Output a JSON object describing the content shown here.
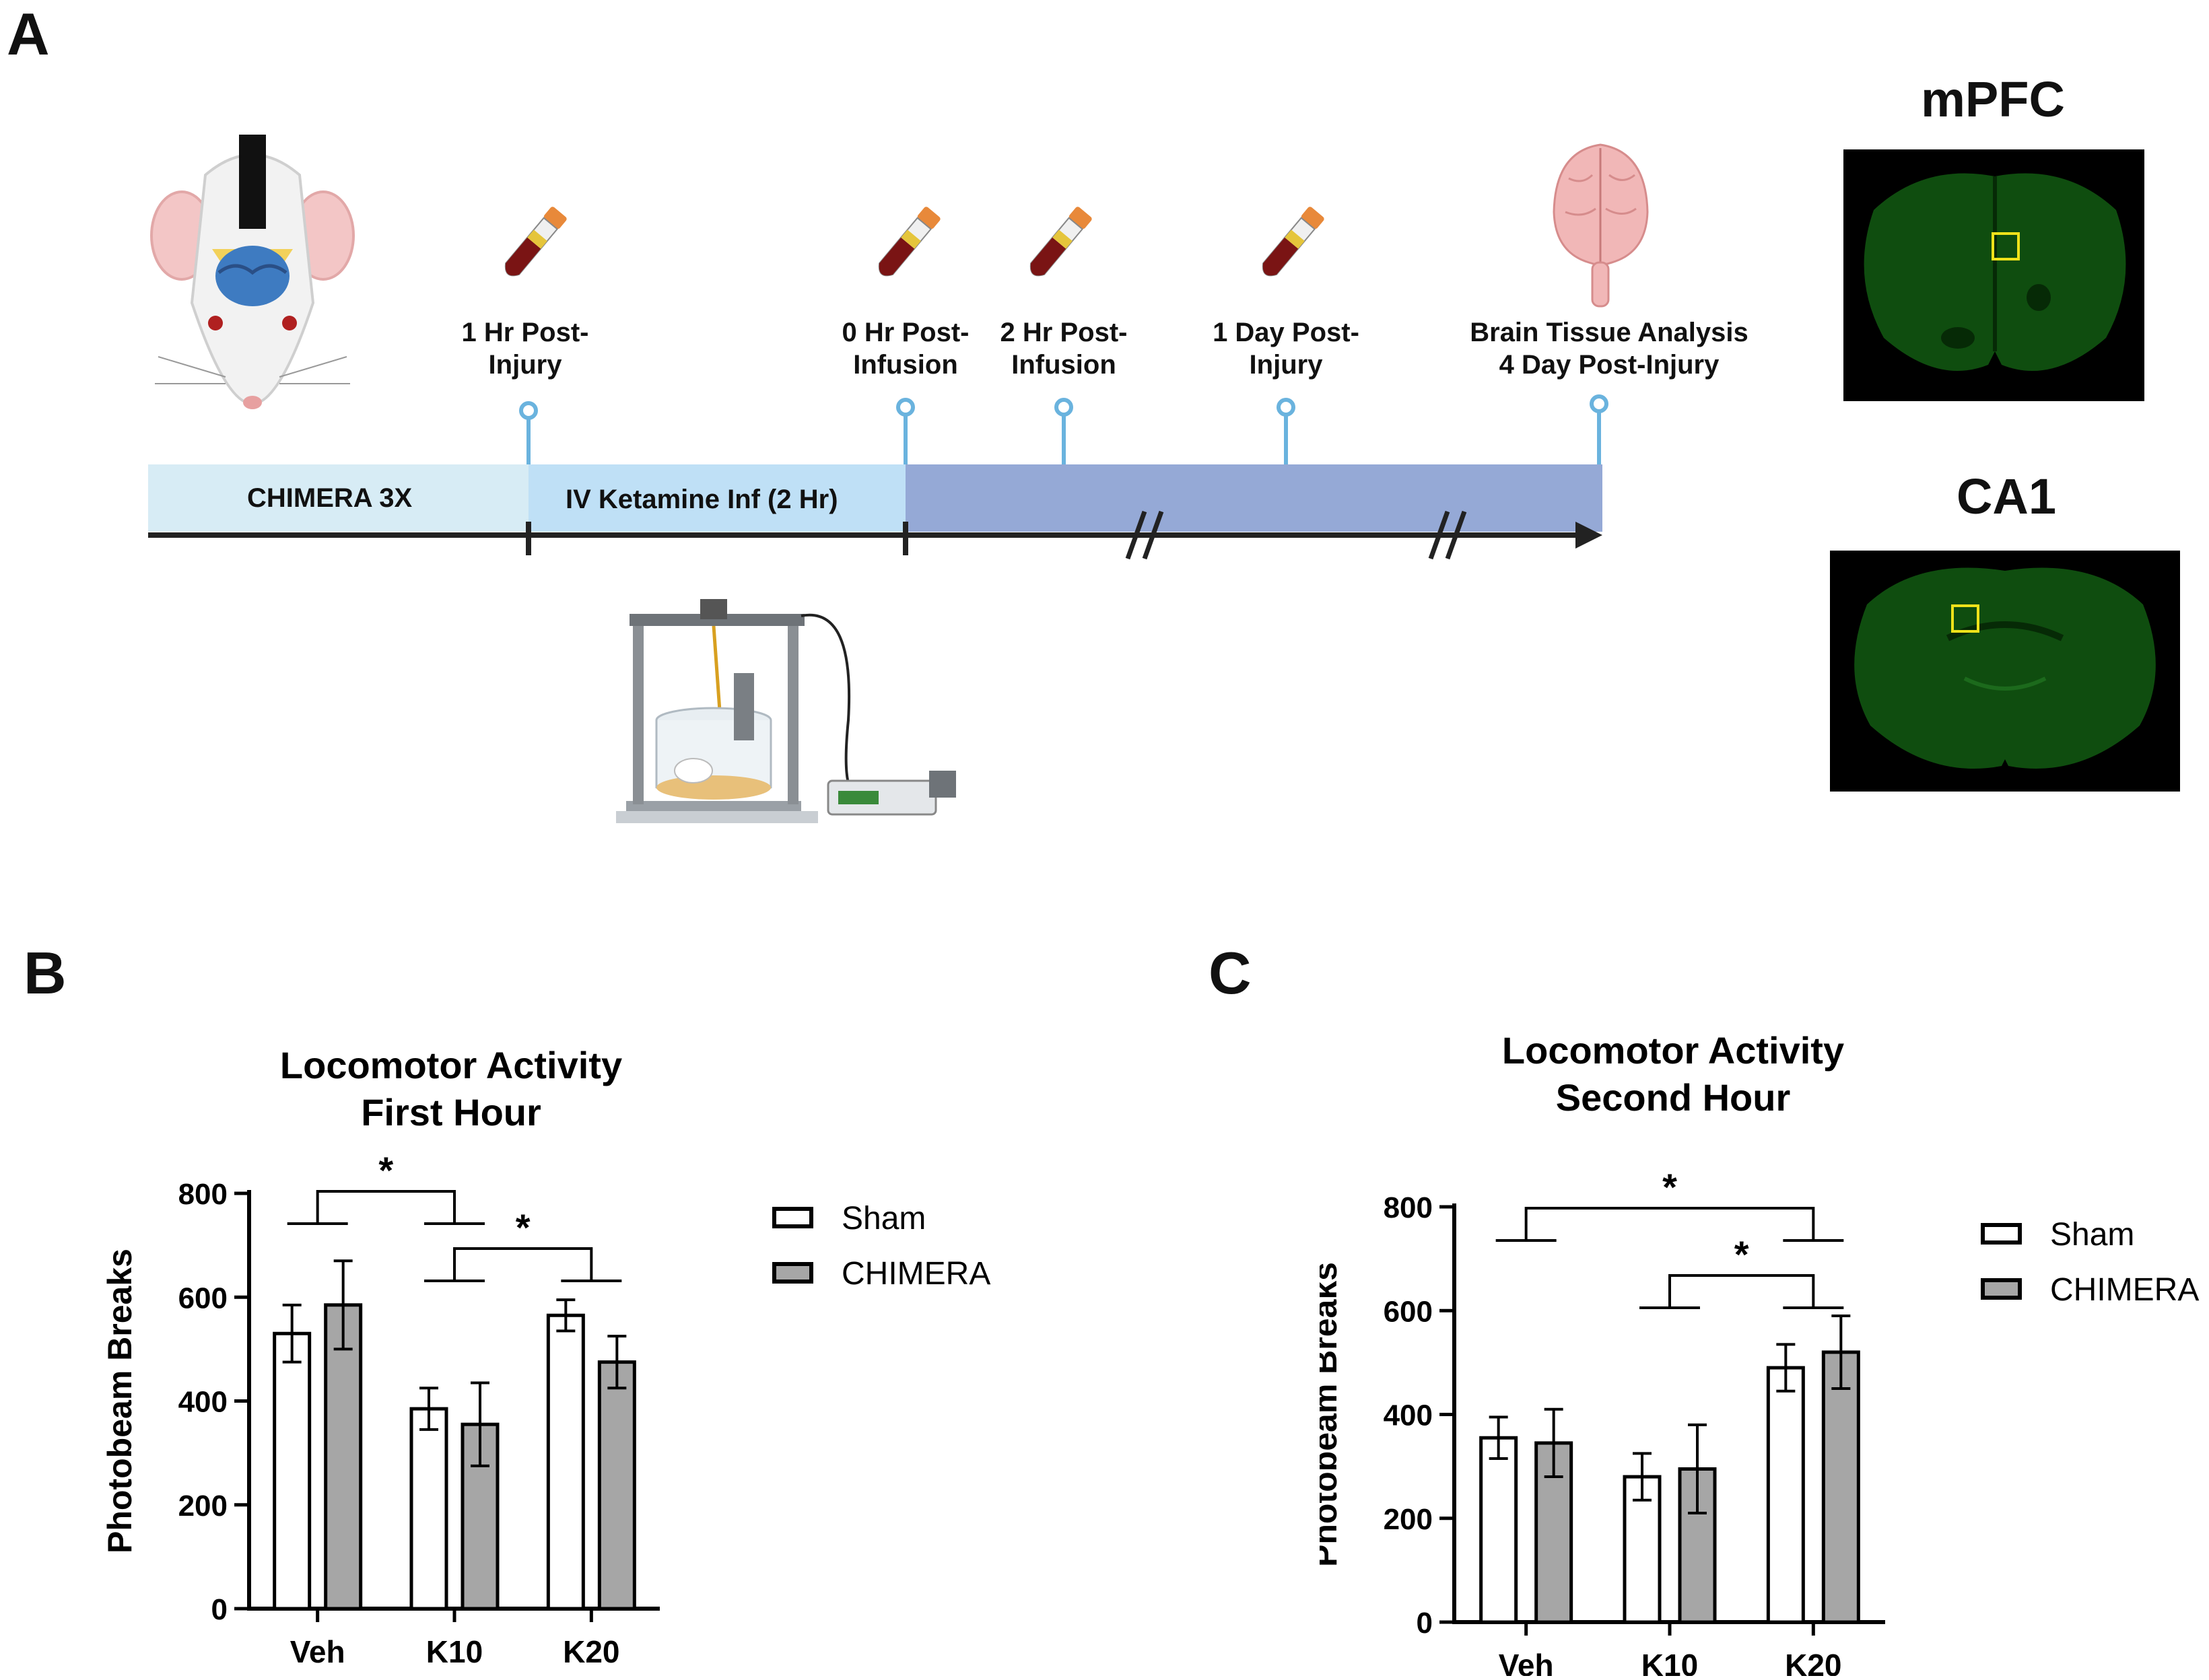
{
  "panel_a": {
    "letter": "A",
    "timepoints": [
      {
        "label": "1 Hr Post-\nInjury"
      },
      {
        "label": "0 Hr Post-\nInfusion"
      },
      {
        "label": "2 Hr Post-\nInfusion"
      },
      {
        "label": "1 Day Post-\nInjury"
      },
      {
        "label": "Brain Tissue Analysis\n4 Day Post-Injury"
      }
    ],
    "segments": {
      "chimera": "CHIMERA 3X",
      "ketamine": "IV Ketamine Inf (2 Hr)"
    },
    "images": [
      {
        "title": "mPFC"
      },
      {
        "title": "CA1"
      }
    ],
    "colors": {
      "segment1": "#d7ecf5",
      "segment2": "#bfe0f6",
      "segment3": "#95a9d6",
      "marker": "#6ab3de",
      "tissue": "#0f4d0f"
    }
  },
  "chart_data": [
    {
      "panel": "B",
      "type": "bar",
      "title": "Locomotor Activity\nFirst Hour",
      "title_lines": [
        "Locomotor Activity",
        "First Hour"
      ],
      "categories": [
        "Veh",
        "K10",
        "K20"
      ],
      "series": [
        {
          "name": "Sham",
          "values": [
            530,
            385,
            565
          ],
          "errors": [
            55,
            40,
            30
          ],
          "color": "#ffffff"
        },
        {
          "name": "CHIMERA",
          "values": [
            585,
            355,
            475
          ],
          "errors": [
            85,
            80,
            50
          ],
          "color": "#a6a6a6"
        }
      ],
      "ylabel": "Photobeam Breaks",
      "xlabel": "",
      "ylim": [
        0,
        800
      ],
      "yticks": [
        0,
        200,
        400,
        600,
        800
      ],
      "legend": "right",
      "significance": [
        {
          "from": "Veh",
          "to": "K10",
          "label": "*"
        },
        {
          "from": "K10",
          "to": "K20",
          "label": "*"
        }
      ]
    },
    {
      "panel": "C",
      "type": "bar",
      "title": "Locomotor Activity\nSecond Hour",
      "title_lines": [
        "Locomotor Activity",
        "Second Hour"
      ],
      "categories": [
        "Veh",
        "K10",
        "K20"
      ],
      "series": [
        {
          "name": "Sham",
          "values": [
            355,
            280,
            490
          ],
          "errors": [
            40,
            45,
            45
          ],
          "color": "#ffffff"
        },
        {
          "name": "CHIMERA",
          "values": [
            345,
            295,
            520
          ],
          "errors": [
            65,
            85,
            70
          ],
          "color": "#a6a6a6"
        }
      ],
      "ylabel": "Photobeam Breaks",
      "xlabel": "",
      "ylim": [
        0,
        800
      ],
      "yticks": [
        0,
        200,
        400,
        600,
        800
      ],
      "legend": "right",
      "significance": [
        {
          "from": "Veh",
          "to": "K20",
          "label": "*"
        },
        {
          "from": "K10",
          "to": "K20",
          "label": "*"
        }
      ]
    }
  ]
}
